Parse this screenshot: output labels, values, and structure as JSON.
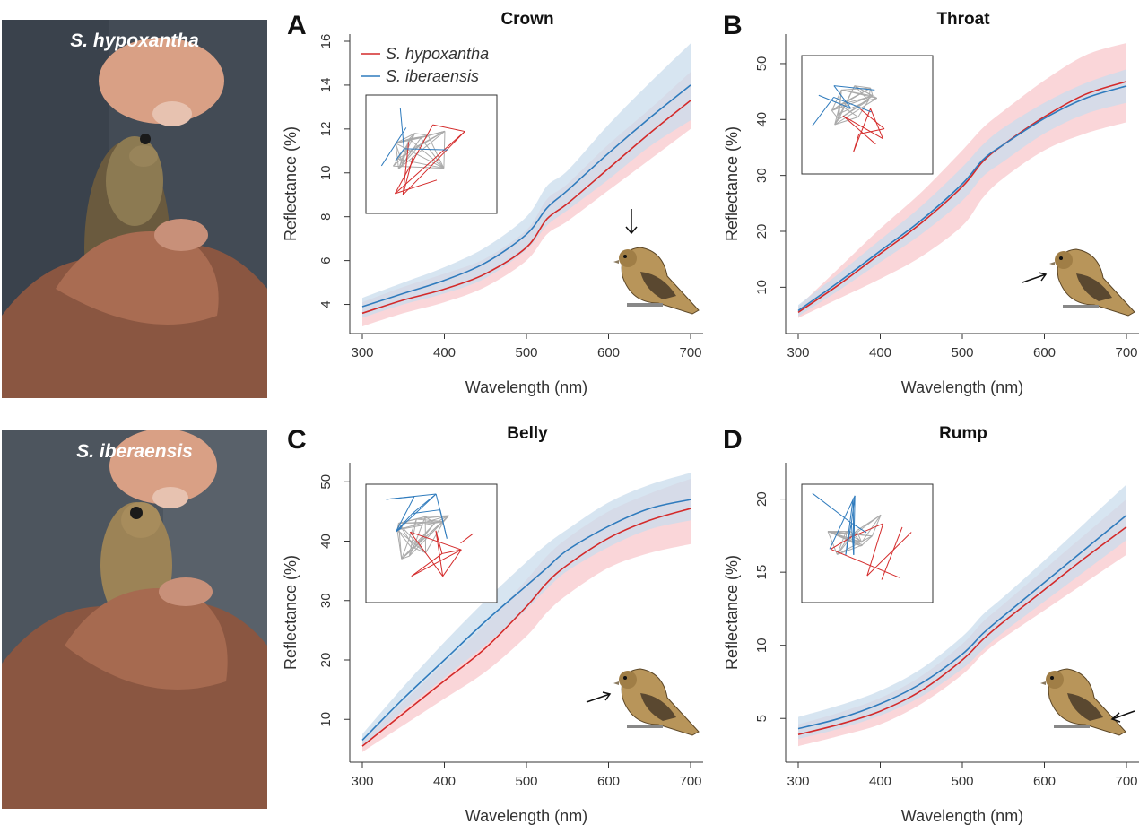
{
  "photos": [
    {
      "label": "S. hypoxantha"
    },
    {
      "label": "S. iberaensis"
    }
  ],
  "colors": {
    "hypoxantha": "#d42a2a",
    "iberaensis": "#2f7bbd",
    "hypoxantha_band": "#f8c8cc",
    "iberaensis_band": "#c9dcec",
    "inset_gray": "#aaaaaa"
  },
  "legend": [
    "S. hypoxantha",
    "S. iberaensis"
  ],
  "chart_data": [
    {
      "type": "line",
      "letter": "A",
      "title": "Crown",
      "xlabel": "Wavelength (nm)",
      "ylabel": "Reflectance (%)",
      "xlim": [
        300,
        700
      ],
      "ylim": [
        3,
        16
      ],
      "xticks": [
        300,
        400,
        500,
        600,
        700
      ],
      "yticks": [
        4,
        6,
        8,
        10,
        12,
        14,
        16
      ],
      "grid": false,
      "legend_position": "top-left",
      "inset_position": "top-left",
      "arrow_direction": "down",
      "bird_position": "bottom-right",
      "x": [
        300,
        350,
        400,
        450,
        500,
        525,
        550,
        600,
        650,
        700
      ],
      "series": [
        {
          "name": "S. hypoxantha",
          "values": [
            3.6,
            4.2,
            4.7,
            5.4,
            6.6,
            7.9,
            8.6,
            10.2,
            11.8,
            13.3
          ],
          "lower": [
            3.0,
            3.6,
            4.1,
            4.8,
            6.0,
            7.2,
            7.8,
            9.2,
            10.6,
            12.0
          ],
          "upper": [
            4.1,
            4.8,
            5.4,
            6.1,
            7.4,
            8.8,
            9.5,
            11.3,
            12.9,
            14.6
          ]
        },
        {
          "name": "S. iberaensis",
          "values": [
            3.9,
            4.5,
            5.1,
            5.9,
            7.2,
            8.4,
            9.2,
            10.9,
            12.5,
            14.0
          ],
          "lower": [
            3.4,
            4.0,
            4.5,
            5.2,
            6.5,
            7.6,
            8.3,
            9.7,
            11.2,
            12.4
          ],
          "upper": [
            4.3,
            5.0,
            5.7,
            6.6,
            8.0,
            9.4,
            10.1,
            12.2,
            14.1,
            15.9
          ]
        }
      ]
    },
    {
      "type": "line",
      "letter": "B",
      "title": "Throat",
      "xlabel": "Wavelength (nm)",
      "ylabel": "Reflectance (%)",
      "xlim": [
        300,
        700
      ],
      "ylim": [
        3,
        54
      ],
      "xticks": [
        300,
        400,
        500,
        600,
        700
      ],
      "yticks": [
        10,
        20,
        30,
        40,
        50
      ],
      "grid": false,
      "inset_position": "top-left",
      "arrow_direction": "right",
      "bird_position": "bottom-right",
      "x": [
        300,
        350,
        400,
        450,
        500,
        525,
        550,
        600,
        650,
        700
      ],
      "series": [
        {
          "name": "S. hypoxantha",
          "values": [
            5.5,
            10.5,
            16.0,
            21.5,
            28.0,
            32.5,
            35.5,
            40.5,
            44.5,
            46.8
          ],
          "lower": [
            4.5,
            8.0,
            11.5,
            15.5,
            21.0,
            26.0,
            29.5,
            34.5,
            37.5,
            39.5
          ],
          "upper": [
            6.5,
            13.5,
            20.5,
            27.0,
            34.5,
            38.5,
            41.5,
            47.0,
            51.5,
            53.7
          ]
        },
        {
          "name": "S. iberaensis",
          "values": [
            5.8,
            11.0,
            16.5,
            22.0,
            28.5,
            32.8,
            35.5,
            40.2,
            43.8,
            46.0
          ],
          "lower": [
            4.8,
            9.5,
            14.5,
            19.5,
            25.5,
            29.8,
            32.5,
            37.5,
            41.0,
            43.0
          ],
          "upper": [
            6.8,
            12.5,
            18.5,
            24.5,
            31.5,
            35.5,
            38.5,
            43.0,
            46.5,
            49.0
          ]
        }
      ]
    },
    {
      "type": "line",
      "letter": "C",
      "title": "Belly",
      "xlabel": "Wavelength (nm)",
      "ylabel": "Reflectance (%)",
      "xlim": [
        300,
        700
      ],
      "ylim": [
        4,
        52
      ],
      "xticks": [
        300,
        400,
        500,
        600,
        700
      ],
      "yticks": [
        10,
        20,
        30,
        40,
        50
      ],
      "grid": false,
      "inset_position": "top-left",
      "arrow_direction": "right",
      "bird_position": "bottom-right",
      "x": [
        300,
        350,
        400,
        450,
        500,
        525,
        550,
        600,
        650,
        700
      ],
      "series": [
        {
          "name": "S. hypoxantha",
          "values": [
            5.5,
            11.0,
            16.5,
            22.0,
            29.0,
            33.0,
            36.0,
            40.5,
            43.5,
            45.5
          ],
          "lower": [
            4.5,
            9.0,
            13.5,
            18.0,
            24.0,
            28.0,
            31.0,
            35.5,
            38.0,
            39.5
          ],
          "upper": [
            6.5,
            13.0,
            19.5,
            26.0,
            33.5,
            37.5,
            40.5,
            45.0,
            48.0,
            50.5
          ]
        },
        {
          "name": "S. iberaensis",
          "values": [
            6.5,
            13.5,
            20.0,
            26.5,
            32.5,
            35.5,
            38.5,
            42.5,
            45.5,
            47.0
          ],
          "lower": [
            5.5,
            11.5,
            17.0,
            22.5,
            28.5,
            32.0,
            35.0,
            39.0,
            42.0,
            43.5
          ],
          "upper": [
            7.5,
            15.5,
            23.0,
            30.0,
            36.5,
            39.5,
            42.0,
            46.5,
            49.5,
            51.5
          ]
        }
      ]
    },
    {
      "type": "line",
      "letter": "D",
      "title": "Rump",
      "xlabel": "Wavelength (nm)",
      "ylabel": "Reflectance (%)",
      "xlim": [
        300,
        700
      ],
      "ylim": [
        2.5,
        22
      ],
      "xticks": [
        300,
        400,
        500,
        600,
        700
      ],
      "yticks": [
        5,
        10,
        15,
        20
      ],
      "grid": false,
      "inset_position": "top-left",
      "arrow_direction": "left",
      "bird_position": "bottom-right",
      "x": [
        300,
        350,
        400,
        450,
        500,
        525,
        550,
        600,
        650,
        700
      ],
      "series": [
        {
          "name": "S. hypoxantha",
          "values": [
            3.9,
            4.6,
            5.5,
            6.9,
            9.0,
            10.4,
            11.6,
            13.8,
            16.0,
            18.1
          ],
          "lower": [
            3.1,
            3.8,
            4.6,
            6.0,
            8.0,
            9.4,
            10.5,
            12.4,
            14.3,
            16.2
          ],
          "upper": [
            4.6,
            5.4,
            6.4,
            7.9,
            10.1,
            11.6,
            12.8,
            15.2,
            17.6,
            20.0
          ]
        },
        {
          "name": "S. iberaensis",
          "values": [
            4.3,
            5.0,
            6.0,
            7.4,
            9.4,
            10.8,
            12.0,
            14.3,
            16.6,
            18.9
          ],
          "lower": [
            3.6,
            4.3,
            5.2,
            6.5,
            8.4,
            9.7,
            10.9,
            13.0,
            15.1,
            17.2
          ],
          "upper": [
            5.1,
            5.9,
            6.9,
            8.4,
            10.6,
            12.1,
            13.3,
            15.8,
            18.4,
            21.0
          ]
        }
      ]
    }
  ]
}
